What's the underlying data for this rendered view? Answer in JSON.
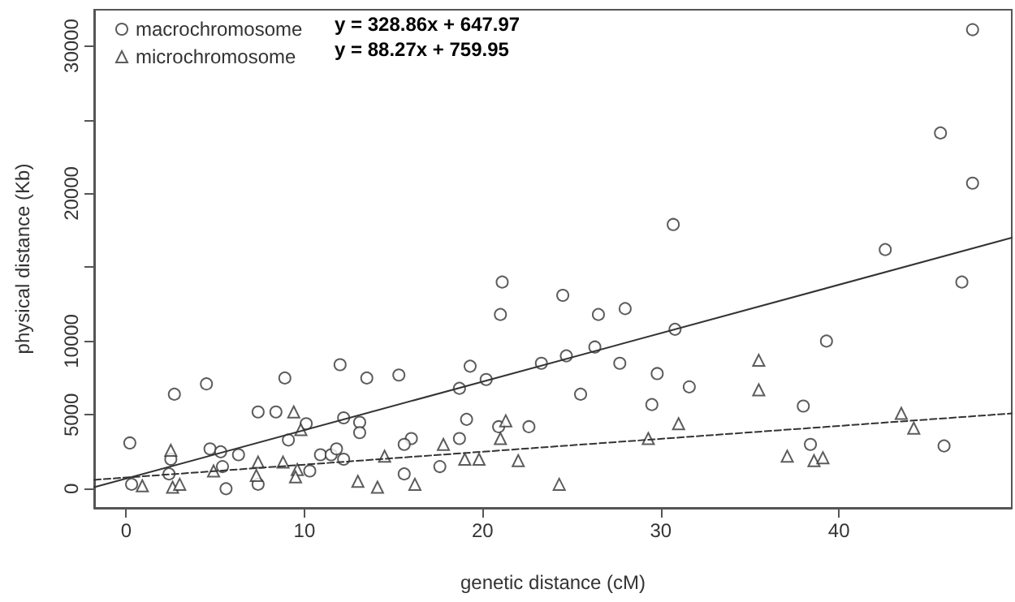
{
  "chart_data": {
    "type": "scatter",
    "xlabel": "genetic distance (cM)",
    "ylabel": "physical distance (Kb)",
    "xlim": [
      -1.8,
      49.7
    ],
    "xticks": [
      0,
      10,
      20,
      30,
      40
    ],
    "ylim": [
      -1300,
      32450
    ],
    "yticks": [
      0,
      5000,
      10000,
      {
        "value": 15000,
        "label": null
      },
      20000,
      {
        "value": 25000,
        "label": null
      },
      30000
    ],
    "grid": false,
    "legend": "top left",
    "annotations": [
      "y = 328.86x + 647.97",
      "y = 88.27x + 759.95"
    ],
    "series": [
      {
        "name": "macrochromosome",
        "type": "scatter",
        "marker": "circle",
        "color": "#333333",
        "x": [
          0.2,
          0.3,
          2.7,
          4.5,
          8.9,
          12.0,
          13.5,
          15.3,
          7.4,
          8.4,
          10.1,
          12.2,
          13.1,
          13.1,
          9.1,
          16.0,
          15.6,
          2.5,
          2.4,
          4.7,
          5.3,
          6.3,
          5.4,
          5.6,
          7.4,
          10.9,
          11.5,
          11.8,
          12.2,
          10.3,
          15.6,
          30.7,
          21.1,
          21.0,
          24.5,
          26.5,
          28.0,
          30.8,
          19.3,
          20.2,
          18.7,
          23.3,
          24.7,
          26.3,
          27.7,
          29.8,
          31.6,
          25.5,
          29.5,
          19.1,
          20.9,
          22.6,
          18.7,
          17.6,
          47.5,
          45.7,
          47.5,
          42.6,
          46.9,
          39.3,
          38.0,
          38.4,
          45.9
        ],
        "values": [
          3100,
          300,
          6400,
          7100,
          7500,
          8400,
          7500,
          7700,
          5200,
          5200,
          4400,
          4800,
          4500,
          3800,
          3300,
          3400,
          3000,
          2000,
          1000,
          2700,
          2500,
          2300,
          1500,
          0,
          300,
          2300,
          2300,
          2700,
          2000,
          1200,
          1000,
          17900,
          14000,
          11800,
          13100,
          11800,
          12200,
          10800,
          8300,
          7400,
          6800,
          8500,
          9000,
          9600,
          8500,
          7800,
          6900,
          6400,
          5700,
          4700,
          4200,
          4200,
          3400,
          1500,
          31100,
          24100,
          20700,
          16200,
          14000,
          10000,
          5600,
          3000,
          2900
        ]
      },
      {
        "name": "microchromosome",
        "type": "scatter",
        "marker": "triangle",
        "color": "#333333",
        "x": [
          2.5,
          0.9,
          2.6,
          3.0,
          4.9,
          7.4,
          7.3,
          8.8,
          9.4,
          9.8,
          9.6,
          9.5,
          13.0,
          14.1,
          14.5,
          16.2,
          21.3,
          21.0,
          17.8,
          19.0,
          19.8,
          22.0,
          24.3,
          29.3,
          31.0,
          35.5,
          35.5,
          43.5,
          44.2,
          37.1,
          38.6,
          39.1
        ],
        "values": [
          2600,
          200,
          100,
          300,
          1200,
          1800,
          900,
          1800,
          5200,
          4000,
          1300,
          800,
          500,
          100,
          2200,
          300,
          4600,
          3400,
          3000,
          2000,
          2000,
          1900,
          300,
          3400,
          4400,
          8700,
          6700,
          5100,
          4100,
          2200,
          1900,
          2100
        ]
      },
      {
        "type": "line",
        "line_style": "solid",
        "marker": "none",
        "color": "#333333",
        "x": [
          -1.8,
          49.7
        ],
        "values": [
          100,
          17000
        ]
      },
      {
        "type": "line",
        "line_style": "dashed",
        "marker": "none",
        "color": "#333333",
        "x": [
          -1.8,
          49.7
        ],
        "values": [
          600,
          5100
        ]
      }
    ]
  }
}
